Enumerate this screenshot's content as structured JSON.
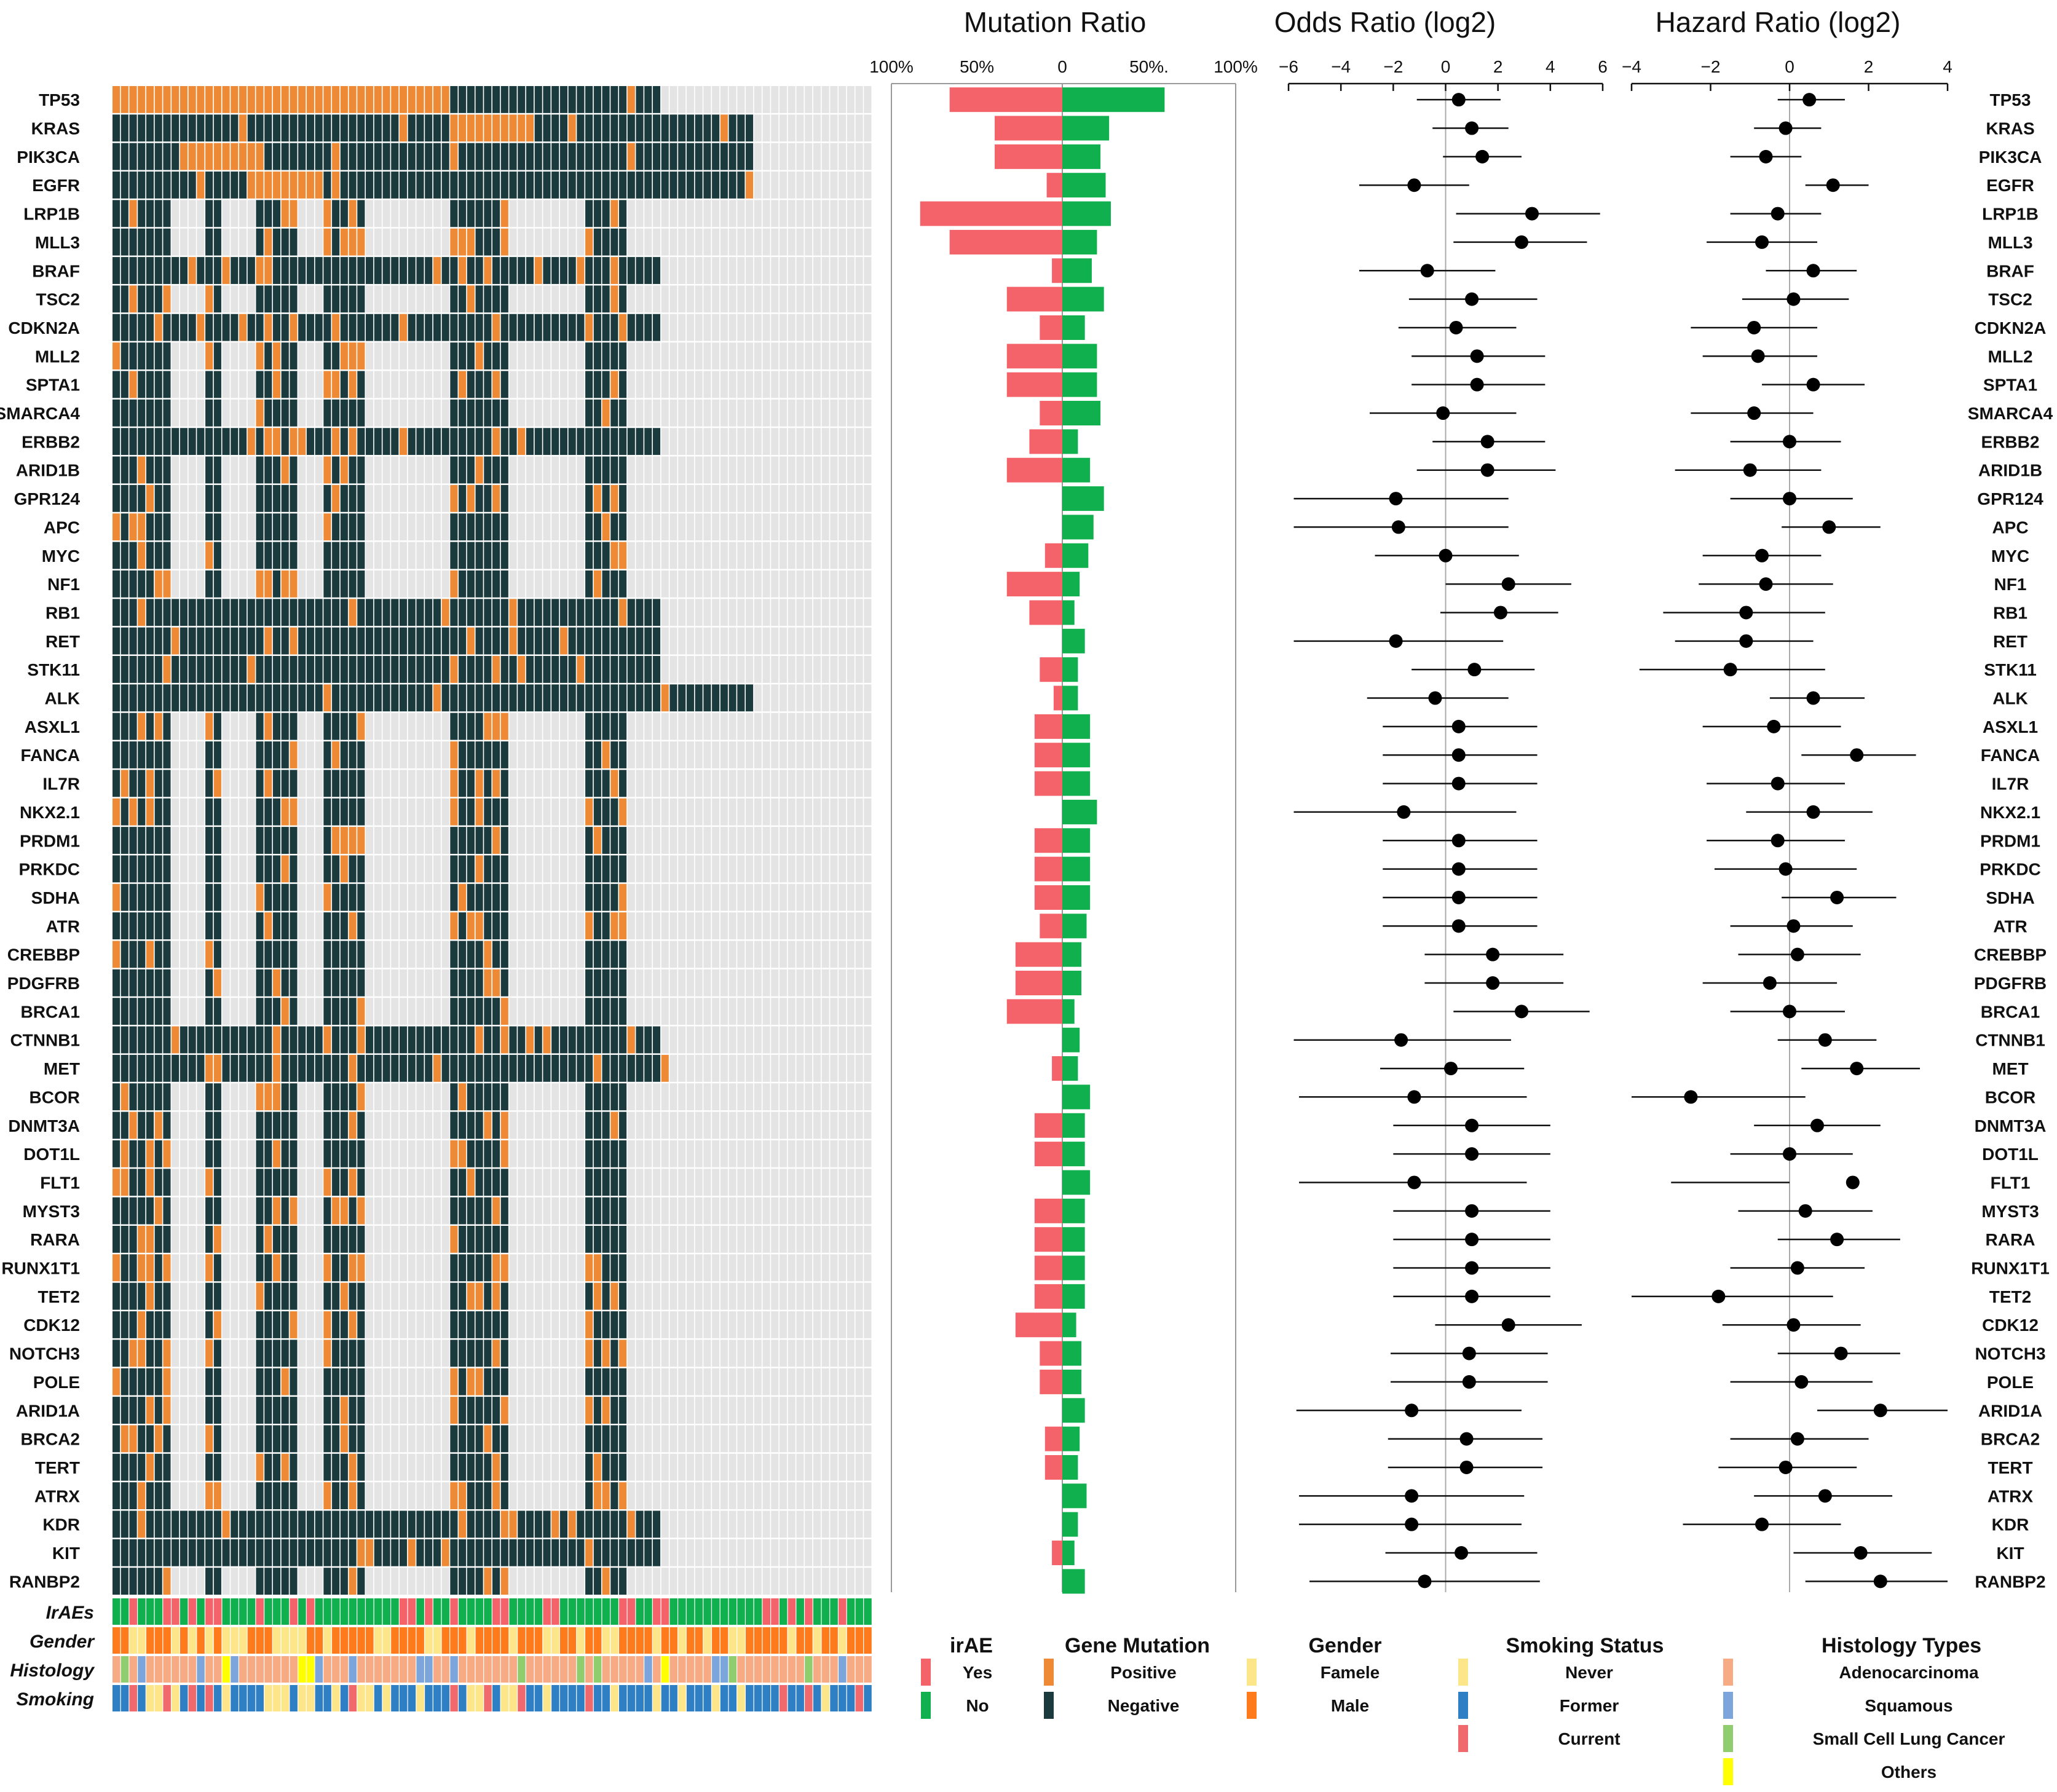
{
  "colors": {
    "mutation_positive": "#ee8a35",
    "mutation_negative": "#1b3a3d",
    "empty_cell": "#e4e4e4",
    "irae_yes": "#f4636a",
    "irae_no": "#11b04e",
    "gender_female": "#fde68a",
    "gender_male": "#ff7a1a",
    "smoke_never": "#fde68a",
    "smoke_former": "#2e7fc4",
    "smoke_current": "#f06a6d",
    "hist_adeno": "#f7ab84",
    "hist_squamous": "#7ca5dc",
    "hist_sclc": "#8fcd6e",
    "hist_others": "#ffff00"
  },
  "genes": [
    "TP53",
    "KRAS",
    "PIK3CA",
    "EGFR",
    "LRP1B",
    "MLL3",
    "BRAF",
    "TSC2",
    "CDKN2A",
    "MLL2",
    "SPTA1",
    "SMARCA4",
    "ERBB2",
    "ARID1B",
    "GPR124",
    "APC",
    "MYC",
    "NF1",
    "RB1",
    "RET",
    "STK11",
    "ALK",
    "ASXL1",
    "FANCA",
    "IL7R",
    "NKX2.1",
    "PRDM1",
    "PRKDC",
    "SDHA",
    "ATR",
    "CREBBP",
    "PDGFRB",
    "BRCA1",
    "CTNNB1",
    "MET",
    "BCOR",
    "DNMT3A",
    "DOT1L",
    "FLT1",
    "MYST3",
    "RARA",
    "RUNX1T1",
    "TET2",
    "CDK12",
    "NOTCH3",
    "POLE",
    "ARID1A",
    "BRCA2",
    "TERT",
    "ATRX",
    "KDR",
    "KIT",
    "RANBP2"
  ],
  "tracks": [
    "IrAEs",
    "Gender",
    "Histology",
    "Smoking"
  ],
  "panel_titles": {
    "mutation": "Mutation Ratio",
    "odds": "Odds Ratio (log2)",
    "hazard": "Hazard Ratio (log2)"
  },
  "mutation_axis_ticks": [
    "100%",
    "50%",
    "0",
    "50%.",
    "100%"
  ],
  "odds_axis_ticks": [
    "−6",
    "−4",
    "−2",
    "0",
    "2",
    "4",
    "6"
  ],
  "hazard_axis_ticks": [
    "−4",
    "−2",
    "0",
    "2",
    "4"
  ],
  "chart_data": [
    {
      "type": "bar",
      "title": "Mutation Ratio",
      "categories": [
        "TP53",
        "KRAS",
        "PIK3CA",
        "EGFR",
        "LRP1B",
        "MLL3",
        "BRAF",
        "TSC2",
        "CDKN2A",
        "MLL2",
        "SPTA1",
        "SMARCA4",
        "ERBB2",
        "ARID1B",
        "GPR124",
        "APC",
        "MYC",
        "NF1",
        "RB1",
        "RET",
        "STK11",
        "ALK",
        "ASXL1",
        "FANCA",
        "IL7R",
        "NKX2.1",
        "PRDM1",
        "PRKDC",
        "SDHA",
        "ATR",
        "CREBBP",
        "PDGFRB",
        "BRCA1",
        "CTNNB1",
        "MET",
        "BCOR",
        "DNMT3A",
        "DOT1L",
        "FLT1",
        "MYST3",
        "RARA",
        "RUNX1T1",
        "TET2",
        "CDK12",
        "NOTCH3",
        "POLE",
        "ARID1A",
        "BRCA2",
        "TERT",
        "ATRX",
        "KDR",
        "KIT",
        "RANBP2"
      ],
      "series": [
        {
          "name": "irAE Yes",
          "values": [
            65,
            39,
            39,
            9,
            82,
            65,
            6,
            32,
            13,
            32,
            32,
            13,
            19,
            32,
            0,
            0,
            10,
            32,
            19,
            0,
            13,
            5,
            16,
            16,
            16,
            0,
            16,
            16,
            16,
            13,
            27,
            27,
            32,
            0,
            6,
            0,
            16,
            16,
            0,
            16,
            16,
            16,
            16,
            27,
            13,
            13,
            0,
            10,
            10,
            0,
            0,
            6,
            0
          ]
        },
        {
          "name": "irAE No",
          "values": [
            59,
            27,
            22,
            25,
            28,
            20,
            17,
            24,
            13,
            20,
            20,
            22,
            9,
            16,
            24,
            18,
            15,
            10,
            7,
            13,
            9,
            9,
            16,
            16,
            16,
            20,
            16,
            16,
            16,
            14,
            11,
            11,
            7,
            10,
            9,
            16,
            13,
            13,
            16,
            13,
            13,
            13,
            13,
            8,
            11,
            11,
            13,
            10,
            9,
            14,
            9,
            7,
            13
          ]
        }
      ],
      "xlim": [
        -100,
        100
      ],
      "xlabel": "",
      "ylabel": ""
    },
    {
      "type": "scatter",
      "title": "Odds Ratio (log2)",
      "categories": [
        "TP53",
        "KRAS",
        "PIK3CA",
        "EGFR",
        "LRP1B",
        "MLL3",
        "BRAF",
        "TSC2",
        "CDKN2A",
        "MLL2",
        "SPTA1",
        "SMARCA4",
        "ERBB2",
        "ARID1B",
        "GPR124",
        "APC",
        "MYC",
        "NF1",
        "RB1",
        "RET",
        "STK11",
        "ALK",
        "ASXL1",
        "FANCA",
        "IL7R",
        "NKX2.1",
        "PRDM1",
        "PRKDC",
        "SDHA",
        "ATR",
        "CREBBP",
        "PDGFRB",
        "BRCA1",
        "CTNNB1",
        "MET",
        "BCOR",
        "DNMT3A",
        "DOT1L",
        "FLT1",
        "MYST3",
        "RARA",
        "RUNX1T1",
        "TET2",
        "CDK12",
        "NOTCH3",
        "POLE",
        "ARID1A",
        "BRCA2",
        "TERT",
        "ATRX",
        "KDR",
        "KIT",
        "RANBP2"
      ],
      "estimate": [
        0.5,
        1.0,
        1.4,
        -1.2,
        3.3,
        2.9,
        -0.7,
        1.0,
        0.4,
        1.2,
        1.2,
        -0.1,
        1.6,
        1.6,
        -1.9,
        -1.8,
        0.0,
        2.4,
        2.1,
        -1.9,
        1.1,
        -0.4,
        0.5,
        0.5,
        0.5,
        -1.6,
        0.5,
        0.5,
        0.5,
        0.5,
        1.8,
        1.8,
        2.9,
        -1.7,
        0.2,
        -1.2,
        1.0,
        1.0,
        -1.2,
        1.0,
        1.0,
        1.0,
        1.0,
        2.4,
        0.9,
        0.9,
        -1.3,
        0.8,
        0.8,
        -1.3,
        -1.3,
        0.6,
        -0.8
      ],
      "ci_low": [
        -1.1,
        -0.5,
        -0.1,
        -3.3,
        0.4,
        0.3,
        -3.3,
        -1.4,
        -1.8,
        -1.3,
        -1.3,
        -2.9,
        -0.5,
        -1.1,
        -5.8,
        -5.8,
        -2.7,
        0.0,
        -0.2,
        -5.8,
        -1.3,
        -3.0,
        -2.4,
        -2.4,
        -2.4,
        -5.8,
        -2.4,
        -2.4,
        -2.4,
        -2.4,
        -0.8,
        -0.8,
        0.3,
        -5.8,
        -2.5,
        -5.6,
        -2.0,
        -2.0,
        -5.6,
        -2.0,
        -2.0,
        -2.0,
        -2.0,
        -0.4,
        -2.1,
        -2.1,
        -5.7,
        -2.2,
        -2.2,
        -5.6,
        -5.6,
        -2.3,
        -5.2
      ],
      "ci_high": [
        2.1,
        2.4,
        2.9,
        0.9,
        5.9,
        5.4,
        1.9,
        3.5,
        2.7,
        3.8,
        3.8,
        2.7,
        3.8,
        4.2,
        2.4,
        2.4,
        2.8,
        4.8,
        4.3,
        2.2,
        3.4,
        2.4,
        3.5,
        3.5,
        3.5,
        2.7,
        3.5,
        3.5,
        3.5,
        3.5,
        4.5,
        4.5,
        5.5,
        2.5,
        3.0,
        3.1,
        4.0,
        4.0,
        3.1,
        4.0,
        4.0,
        4.0,
        4.0,
        5.2,
        3.9,
        3.9,
        2.9,
        3.7,
        3.7,
        3.0,
        2.9,
        3.5,
        3.6
      ],
      "xlim": [
        -6,
        6
      ]
    },
    {
      "type": "scatter",
      "title": "Hazard Ratio (log2)",
      "categories": [
        "TP53",
        "KRAS",
        "PIK3CA",
        "EGFR",
        "LRP1B",
        "MLL3",
        "BRAF",
        "TSC2",
        "CDKN2A",
        "MLL2",
        "SPTA1",
        "SMARCA4",
        "ERBB2",
        "ARID1B",
        "GPR124",
        "APC",
        "MYC",
        "NF1",
        "RB1",
        "RET",
        "STK11",
        "ALK",
        "ASXL1",
        "FANCA",
        "IL7R",
        "NKX2.1",
        "PRDM1",
        "PRKDC",
        "SDHA",
        "ATR",
        "CREBBP",
        "PDGFRB",
        "BRCA1",
        "CTNNB1",
        "MET",
        "BCOR",
        "DNMT3A",
        "DOT1L",
        "FLT1",
        "MYST3",
        "RARA",
        "RUNX1T1",
        "TET2",
        "CDK12",
        "NOTCH3",
        "POLE",
        "ARID1A",
        "BRCA2",
        "TERT",
        "ATRX",
        "KDR",
        "KIT",
        "RANBP2"
      ],
      "estimate": [
        0.5,
        -0.1,
        -0.6,
        1.1,
        -0.3,
        -0.7,
        0.6,
        0.1,
        -0.9,
        -0.8,
        0.6,
        -0.9,
        0.0,
        -1.0,
        0.0,
        1.0,
        -0.7,
        -0.6,
        -1.1,
        -1.1,
        -1.5,
        0.6,
        -0.4,
        1.7,
        -0.3,
        0.6,
        -0.3,
        -0.1,
        1.2,
        0.1,
        0.2,
        -0.5,
        0.0,
        0.9,
        1.7,
        -2.5,
        0.7,
        0.0,
        1.6,
        0.4,
        1.2,
        0.2,
        -1.8,
        0.1,
        1.3,
        0.3,
        2.3,
        0.2,
        -0.1,
        0.9,
        -0.7,
        1.8,
        2.3
      ],
      "ci_low": [
        -0.3,
        -0.9,
        -1.5,
        0.4,
        -1.5,
        -2.1,
        -0.6,
        -1.2,
        -2.5,
        -2.2,
        -0.7,
        -2.5,
        -1.5,
        -2.9,
        -1.5,
        -0.2,
        -2.2,
        -2.3,
        -3.2,
        -2.9,
        -3.8,
        -0.5,
        -2.2,
        0.3,
        -2.1,
        -1.1,
        -2.1,
        -1.9,
        -0.2,
        -1.5,
        -1.3,
        -2.2,
        -1.5,
        -0.3,
        0.3,
        -4.0,
        -0.9,
        -1.5,
        -3.0,
        -1.3,
        -0.3,
        -1.5,
        -4.0,
        -1.7,
        -0.3,
        -1.5,
        0.7,
        -1.5,
        -1.8,
        -0.9,
        -2.7,
        0.1,
        0.4
      ],
      "ci_high": [
        1.4,
        0.8,
        0.3,
        2.0,
        0.8,
        0.7,
        1.7,
        1.5,
        0.7,
        0.7,
        1.9,
        0.6,
        1.3,
        0.8,
        1.6,
        2.3,
        0.8,
        1.1,
        0.9,
        0.6,
        0.9,
        1.9,
        1.3,
        3.2,
        1.4,
        2.1,
        1.4,
        1.7,
        2.7,
        1.6,
        1.8,
        1.2,
        1.4,
        2.2,
        3.3,
        0.4,
        2.3,
        1.6,
        0.0,
        2.1,
        2.8,
        1.9,
        1.1,
        1.8,
        2.8,
        2.1,
        4.0,
        2.0,
        1.7,
        2.6,
        1.3,
        3.6,
        4.0
      ],
      "xlim": [
        -4,
        4
      ]
    }
  ],
  "legend": {
    "irae": {
      "title": "irAE",
      "items": [
        "Yes",
        "No"
      ]
    },
    "mutation": {
      "title": "Gene Mutation",
      "items": [
        "Positive",
        "Negative"
      ]
    },
    "gender": {
      "title": "Gender",
      "items": [
        "Famele",
        "Male"
      ]
    },
    "smoking": {
      "title": "Smoking Status",
      "items": [
        "Never",
        "Former",
        "Current"
      ]
    },
    "histology": {
      "title": "Histology Types",
      "items": [
        "Adenocarcinoma",
        "Squamous",
        "Small Cell Lung Cancer",
        "Others"
      ]
    }
  }
}
